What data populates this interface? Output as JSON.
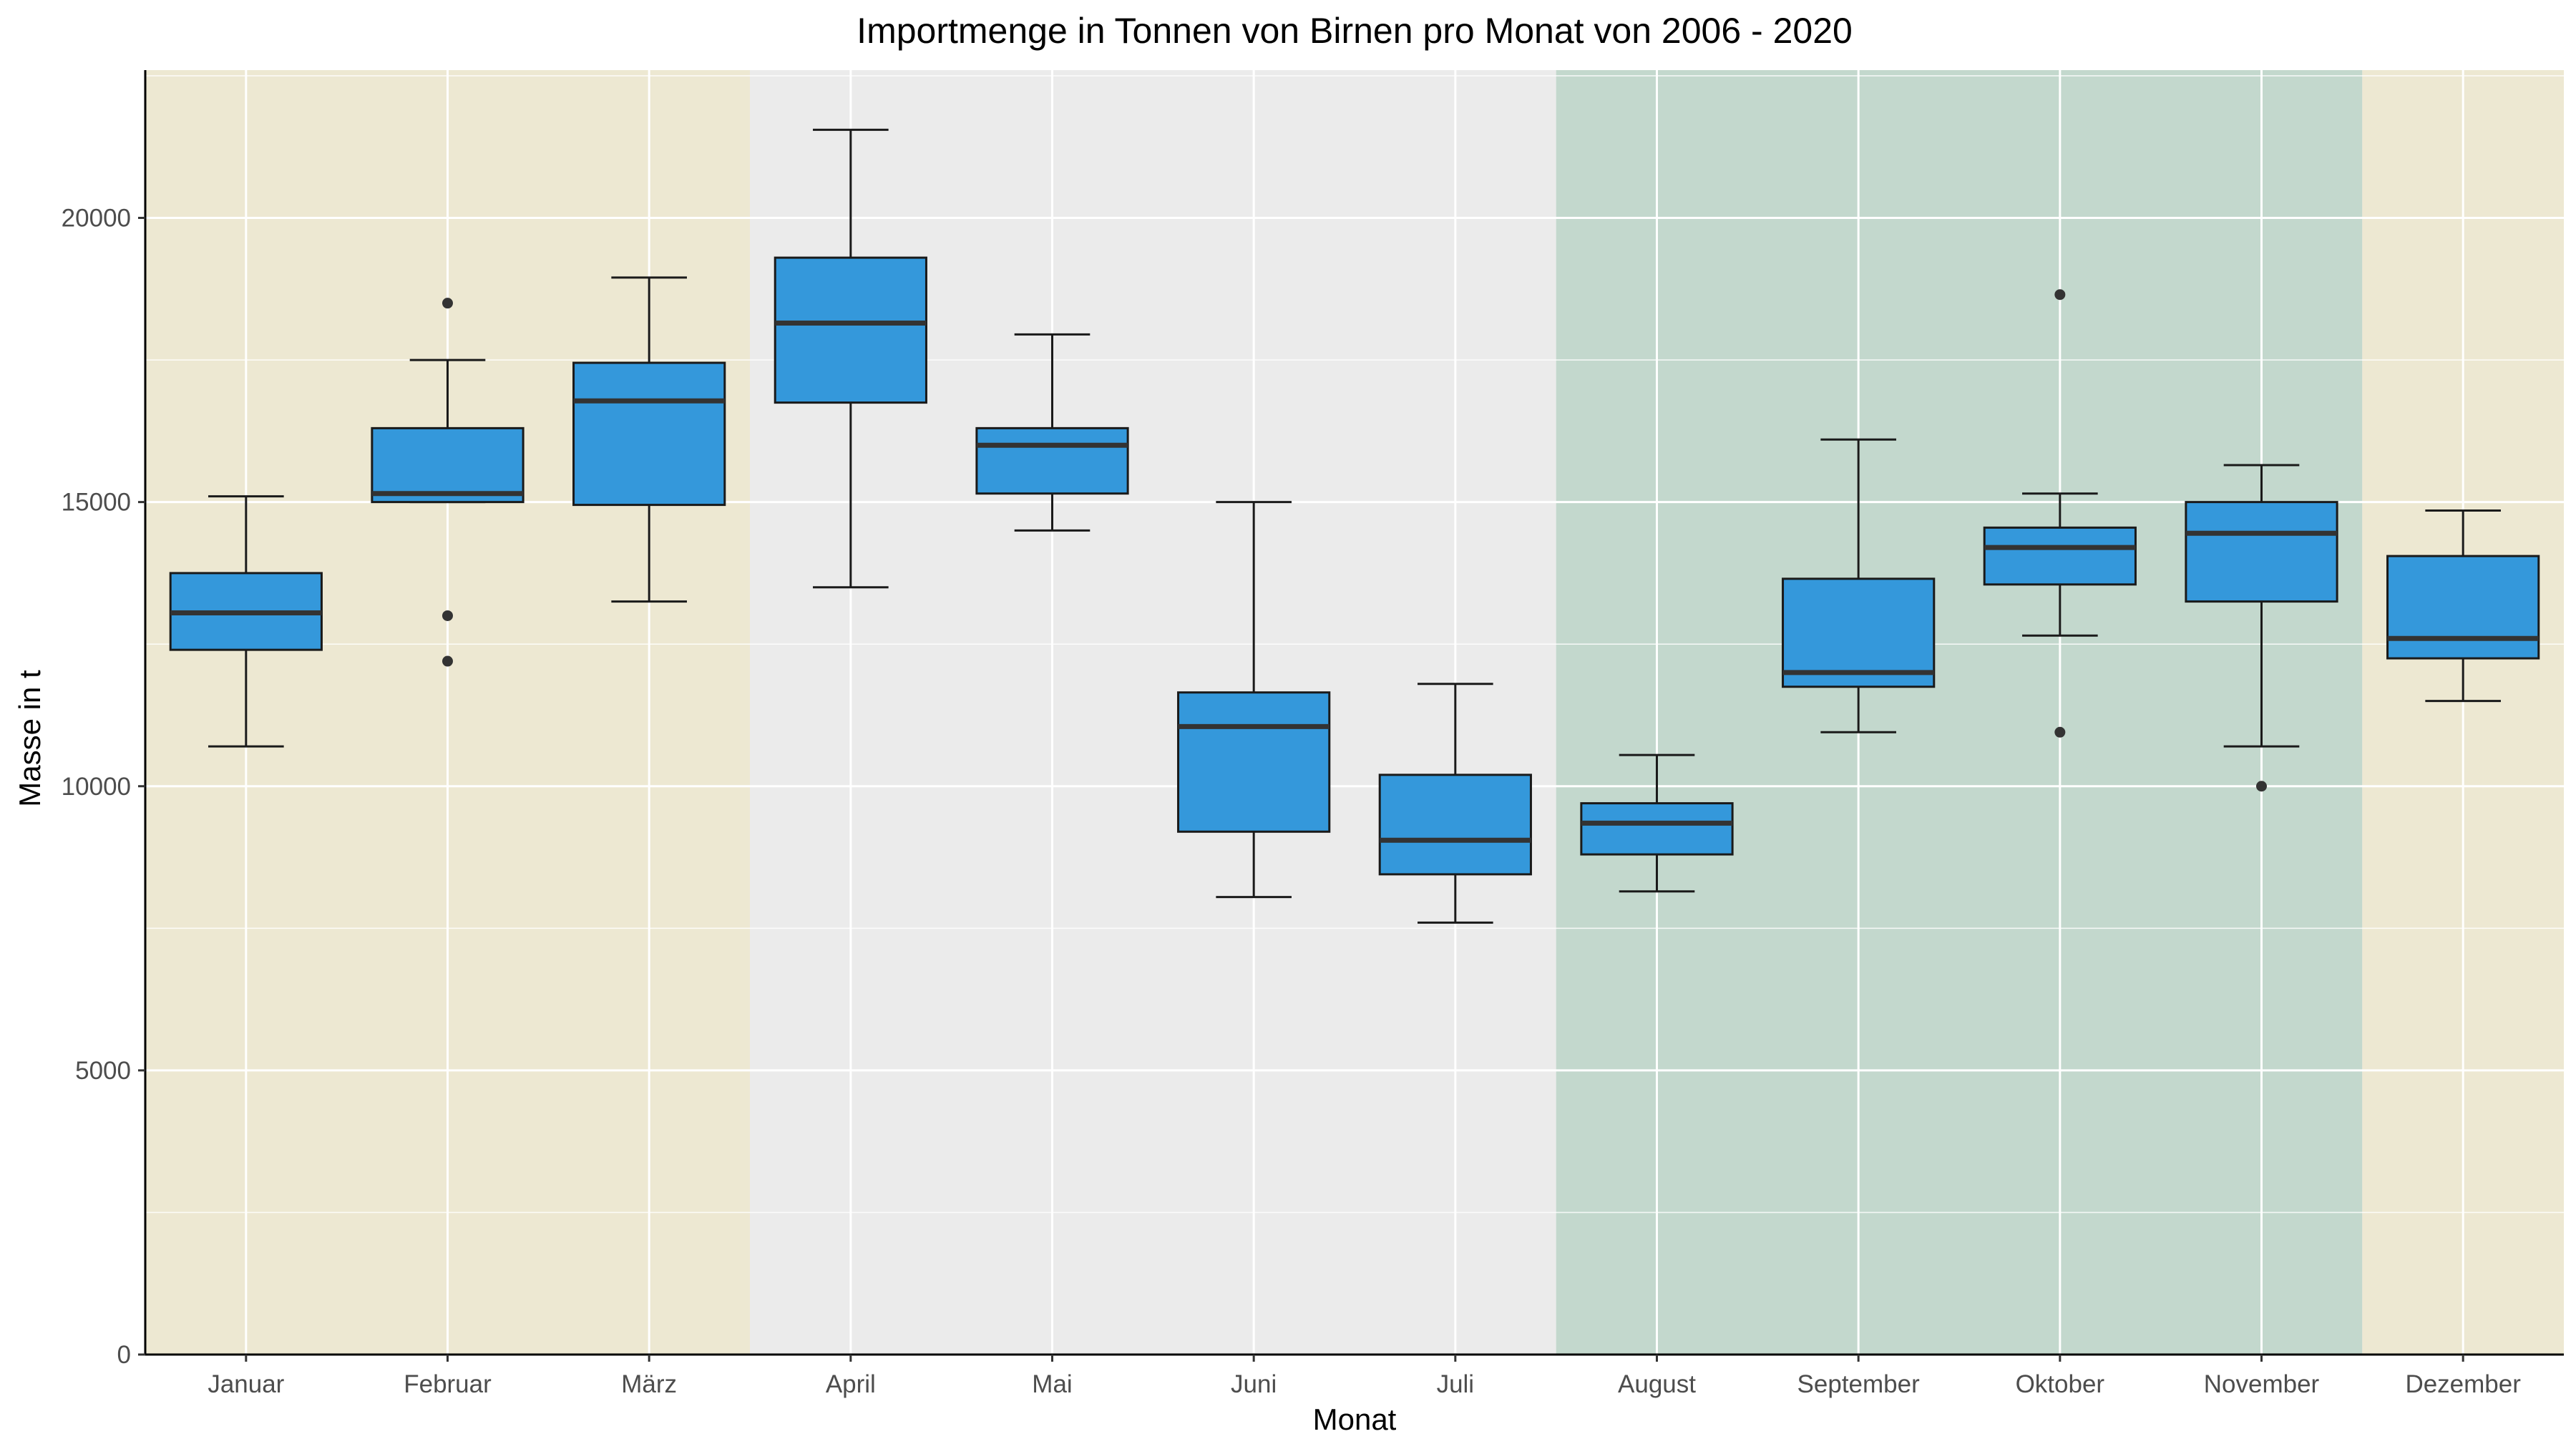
{
  "chart_data": {
    "type": "boxplot",
    "title": "Importmenge in Tonnen von Birnen pro Monat von 2006 - 2020",
    "xlabel": "Monat",
    "ylabel": "Masse in t",
    "ylim": [
      0,
      22600
    ],
    "yticks": [
      0,
      5000,
      10000,
      15000,
      20000
    ],
    "ytick_labels": [
      "0",
      "5000",
      "10000",
      "15000",
      "20000"
    ],
    "grid": true,
    "box_color": "#3498db",
    "season_bands": [
      {
        "from": "Januar",
        "to": "März",
        "color": "#ede8d2"
      },
      {
        "from": "April",
        "to": "Juli",
        "color": "#ebebeb"
      },
      {
        "from": "August",
        "to": "November",
        "color": "#c3d8cd"
      },
      {
        "from": "Dezember",
        "to": "Dezember",
        "color": "#ede8d2"
      }
    ],
    "categories": [
      "Januar",
      "Februar",
      "März",
      "April",
      "Mai",
      "Juni",
      "Juli",
      "August",
      "September",
      "Oktober",
      "November",
      "Dezember"
    ],
    "boxes": [
      {
        "min": 10700,
        "q1": 12400,
        "median": 13050,
        "q3": 13750,
        "max": 15100,
        "outliers": []
      },
      {
        "min": 15000,
        "q1": 15000,
        "median": 15150,
        "q3": 16300,
        "max": 17500,
        "outliers": [
          18500,
          13000,
          12200
        ]
      },
      {
        "min": 13250,
        "q1": 14950,
        "median": 16780,
        "q3": 17450,
        "max": 18950,
        "outliers": []
      },
      {
        "min": 13500,
        "q1": 16750,
        "median": 18150,
        "q3": 19300,
        "max": 21550,
        "outliers": []
      },
      {
        "min": 14500,
        "q1": 15150,
        "median": 16000,
        "q3": 16300,
        "max": 17950,
        "outliers": []
      },
      {
        "min": 8050,
        "q1": 9200,
        "median": 11050,
        "q3": 11650,
        "max": 15000,
        "outliers": []
      },
      {
        "min": 7600,
        "q1": 8450,
        "median": 9050,
        "q3": 10200,
        "max": 11800,
        "outliers": []
      },
      {
        "min": 8150,
        "q1": 8800,
        "median": 9350,
        "q3": 9700,
        "max": 10550,
        "outliers": []
      },
      {
        "min": 10950,
        "q1": 11750,
        "median": 12000,
        "q3": 13650,
        "max": 16100,
        "outliers": []
      },
      {
        "min": 12650,
        "q1": 13550,
        "median": 14200,
        "q3": 14550,
        "max": 15150,
        "outliers": [
          18650,
          10950
        ]
      },
      {
        "min": 10700,
        "q1": 13250,
        "median": 14450,
        "q3": 15000,
        "max": 15650,
        "outliers": [
          10000
        ]
      },
      {
        "min": 11500,
        "q1": 12250,
        "median": 12600,
        "q3": 14050,
        "max": 14850,
        "outliers": []
      }
    ]
  }
}
